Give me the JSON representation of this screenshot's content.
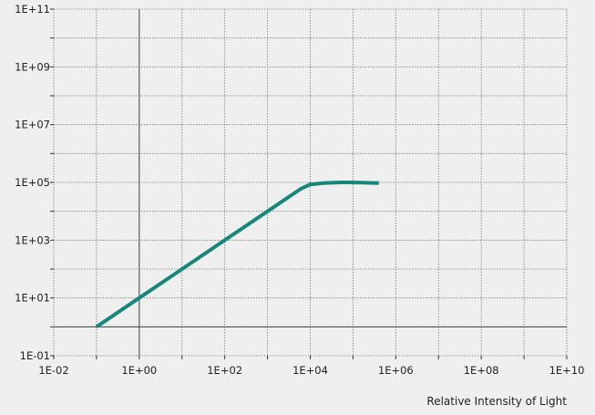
{
  "chart_data": {
    "type": "line",
    "xlabel": "Relative Intensity of Light",
    "ylabel": "",
    "x_scale": "log",
    "y_scale": "log",
    "xlim": [
      0.01,
      10000000000
    ],
    "ylim": [
      0.1,
      100000000000
    ],
    "x_ticks": [
      0.01,
      0.1,
      1,
      10,
      100,
      1000,
      10000,
      100000,
      1000000,
      10000000,
      100000000,
      1000000000,
      10000000000
    ],
    "y_ticks": [
      0.1,
      1,
      10,
      100,
      1000,
      10000,
      100000,
      1000000,
      10000000,
      100000000,
      1000000000,
      10000000000,
      100000000000
    ],
    "x_tick_labels": [
      "1E-02",
      "1E+00",
      "1E+02",
      "1E+04",
      "1E+06",
      "1E+08",
      "1E+10"
    ],
    "x_tick_label_values": [
      0.01,
      1,
      100,
      10000,
      1000000,
      100000000,
      10000000000
    ],
    "y_tick_labels": [
      "1E-01",
      "1E+01",
      "1E+03",
      "1E+05",
      "1E+07",
      "1E+09",
      "1E+11"
    ],
    "y_tick_label_values": [
      0.1,
      10,
      1000,
      100000,
      10000000,
      1000000000,
      100000000000
    ],
    "grid": true,
    "legend": "none",
    "colors": {
      "background": "#efefef",
      "grid": "#7a7a7a",
      "axis": "#444444",
      "series": "#17877a"
    },
    "series": [
      {
        "x": [
          0.1,
          1,
          10,
          100,
          1000,
          6000,
          10000,
          20000,
          50000,
          100000,
          400000
        ],
        "y": [
          1,
          10,
          100,
          1000,
          10000,
          60000,
          85000,
          95000,
          100000,
          100000,
          95000
        ]
      }
    ]
  }
}
